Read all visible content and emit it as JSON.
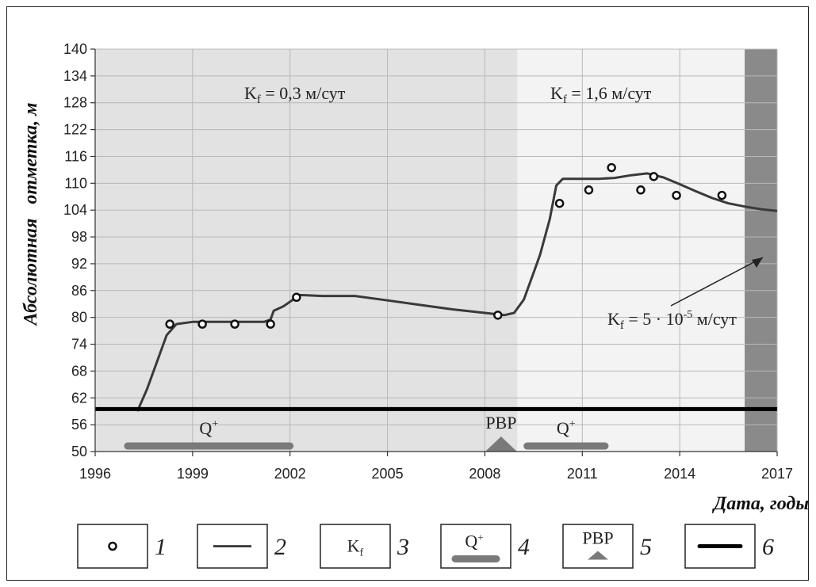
{
  "chart_data": {
    "type": "line",
    "xlabel": "Дата, годы",
    "ylabel": "Абсолютная   отметка, м",
    "xlim": [
      1996,
      2017
    ],
    "ylim": [
      50,
      140
    ],
    "xticks": [
      "1996",
      "1999",
      "2002",
      "2005",
      "2008",
      "2011",
      "2014",
      "2017"
    ],
    "yticks": [
      "50",
      "56",
      "62",
      "68",
      "74",
      "80",
      "86",
      "92",
      "98",
      "104",
      "110",
      "116",
      "122",
      "128",
      "134",
      "140"
    ],
    "zones": [
      {
        "from": 1996,
        "to": 2009.0,
        "kf": "0,3 м/сут",
        "color": "#e2e2e2"
      },
      {
        "from": 2009.0,
        "to": 2016.0,
        "kf": "1,6 м/сут",
        "color": "#f3f3f3"
      },
      {
        "from": 2016.0,
        "to": 2017,
        "kf": "5 · 10",
        "color": "#8a8a8a"
      }
    ],
    "kf_labels": {
      "zone1": {
        "pre": "K",
        "sub": "f",
        "post": " = 0,3 м/сут"
      },
      "zone2": {
        "pre": "K",
        "sub": "f",
        "post": " = 1,6 м/сут"
      },
      "zone3": {
        "pre": "K",
        "sub": "f",
        "mid": " = 5 · 10",
        "sup": "-5",
        "post": " м/сут"
      }
    },
    "series": [
      {
        "name": "1",
        "kind": "observed",
        "points": [
          [
            1998.3,
            78.5
          ],
          [
            1999.3,
            78.5
          ],
          [
            2000.3,
            78.5
          ],
          [
            2001.4,
            78.5
          ],
          [
            2002.2,
            84.5
          ],
          [
            2008.4,
            80.5
          ],
          [
            2010.3,
            105.5
          ],
          [
            2011.2,
            108.5
          ],
          [
            2011.9,
            113.5
          ],
          [
            2012.8,
            108.5
          ],
          [
            2013.2,
            111.5
          ],
          [
            2013.9,
            107.3
          ],
          [
            2015.3,
            107.3
          ]
        ]
      },
      {
        "name": "2",
        "kind": "modeled",
        "points": [
          [
            1997.3,
            59
          ],
          [
            1997.6,
            64
          ],
          [
            1997.9,
            70
          ],
          [
            1998.2,
            76
          ],
          [
            1998.5,
            78.5
          ],
          [
            1999.0,
            79
          ],
          [
            2000.0,
            79
          ],
          [
            2001.2,
            79
          ],
          [
            2001.4,
            79.5
          ],
          [
            2001.5,
            81.5
          ],
          [
            2001.8,
            82.5
          ],
          [
            2002.0,
            83.5
          ],
          [
            2002.3,
            85
          ],
          [
            2003.0,
            84.8
          ],
          [
            2004.0,
            84.8
          ],
          [
            2005.0,
            83.8
          ],
          [
            2006.0,
            82.8
          ],
          [
            2007.0,
            81.8
          ],
          [
            2008.0,
            81
          ],
          [
            2008.6,
            80.5
          ],
          [
            2008.9,
            81
          ],
          [
            2009.2,
            84
          ],
          [
            2009.5,
            90
          ],
          [
            2009.7,
            94
          ],
          [
            2010.0,
            102
          ],
          [
            2010.2,
            109.5
          ],
          [
            2010.4,
            111
          ],
          [
            2011.0,
            111
          ],
          [
            2011.5,
            111
          ],
          [
            2012.0,
            111.2
          ],
          [
            2012.5,
            111.8
          ],
          [
            2013.0,
            112.2
          ],
          [
            2013.5,
            111.3
          ],
          [
            2014.0,
            109.8
          ],
          [
            2014.5,
            108.2
          ],
          [
            2015.0,
            106.7
          ],
          [
            2015.5,
            105.5
          ],
          [
            2016.0,
            104.8
          ],
          [
            2016.5,
            104.2
          ],
          [
            2017.0,
            103.8
          ]
        ]
      }
    ],
    "boundary_level": 59.5,
    "q_bars": [
      {
        "label": "Q",
        "sup": "+",
        "from": 1997.0,
        "to": 2002.0
      },
      {
        "label": "Q",
        "sup": "+",
        "from": 2009.3,
        "to": 2011.7
      }
    ],
    "rvr": {
      "label": "РВР",
      "x": 2008.5
    },
    "colors": {
      "zone1": "#e2e2e2",
      "zone2": "#f3f3f3",
      "zone3": "#8a8a8a",
      "line": "#3a3a3a",
      "bar": "#7a7a7a",
      "boundary": "#000000"
    }
  },
  "legend": [
    {
      "num": "1",
      "kind": "marker"
    },
    {
      "num": "2",
      "kind": "line"
    },
    {
      "num": "3",
      "kind": "kf",
      "label": "K",
      "sub": "f"
    },
    {
      "num": "4",
      "kind": "qbar",
      "label": "Q",
      "sup": "+"
    },
    {
      "num": "5",
      "kind": "rvr",
      "label": "РВР"
    },
    {
      "num": "6",
      "kind": "thickline"
    }
  ]
}
